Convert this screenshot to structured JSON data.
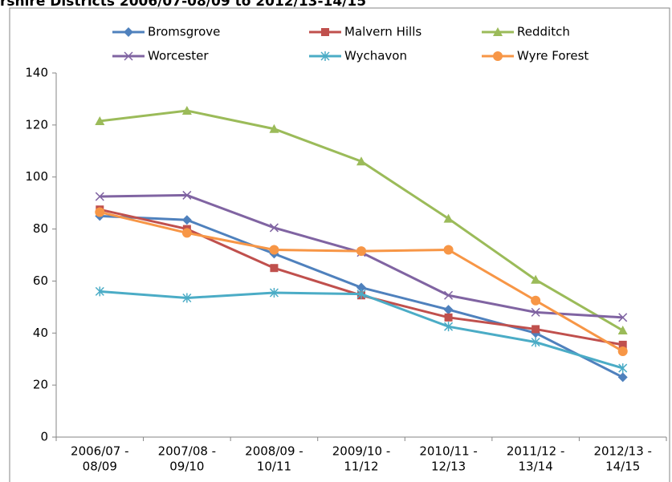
{
  "chart_data": {
    "type": "line",
    "title": "rshire Districts 2006/07-08/09 to 2012/13-14/15",
    "categories": [
      [
        "2006/07 -",
        "08/09"
      ],
      [
        "2007/08 -",
        "09/10"
      ],
      [
        "2008/09 -",
        "10/11"
      ],
      [
        "2009/10 -",
        "11/12"
      ],
      [
        "2010/11 -",
        "12/13"
      ],
      [
        "2011/12 -",
        "13/14"
      ],
      [
        "2012/13 -",
        "14/15"
      ]
    ],
    "series": [
      {
        "name": "Bromsgrove",
        "color": "#4f81bd",
        "marker": "diamond",
        "values": [
          85,
          83.5,
          70.5,
          57.5,
          49,
          40,
          23
        ]
      },
      {
        "name": "Malvern Hills",
        "color": "#c0504d",
        "marker": "square",
        "values": [
          87.5,
          80,
          65,
          54.5,
          46,
          41.5,
          35.5
        ]
      },
      {
        "name": "Redditch",
        "color": "#9bbb59",
        "marker": "triangle",
        "values": [
          121.5,
          125.5,
          118.5,
          106,
          84,
          60.5,
          41
        ]
      },
      {
        "name": "Worcester",
        "color": "#8064a2",
        "marker": "x",
        "values": [
          92.5,
          93,
          80.5,
          71,
          54.5,
          48,
          46
        ]
      },
      {
        "name": "Wychavon",
        "color": "#4bacc6",
        "marker": "star",
        "values": [
          56,
          53.5,
          55.5,
          55,
          42.5,
          36.5,
          26.5
        ]
      },
      {
        "name": "Wyre Forest",
        "color": "#f79646",
        "marker": "circle",
        "values": [
          86.5,
          78.5,
          72,
          71.5,
          72,
          52.5,
          33
        ]
      }
    ],
    "ylim": [
      0,
      140
    ],
    "yticks": [
      0,
      20,
      40,
      60,
      80,
      100,
      120,
      140
    ],
    "grid": false
  }
}
